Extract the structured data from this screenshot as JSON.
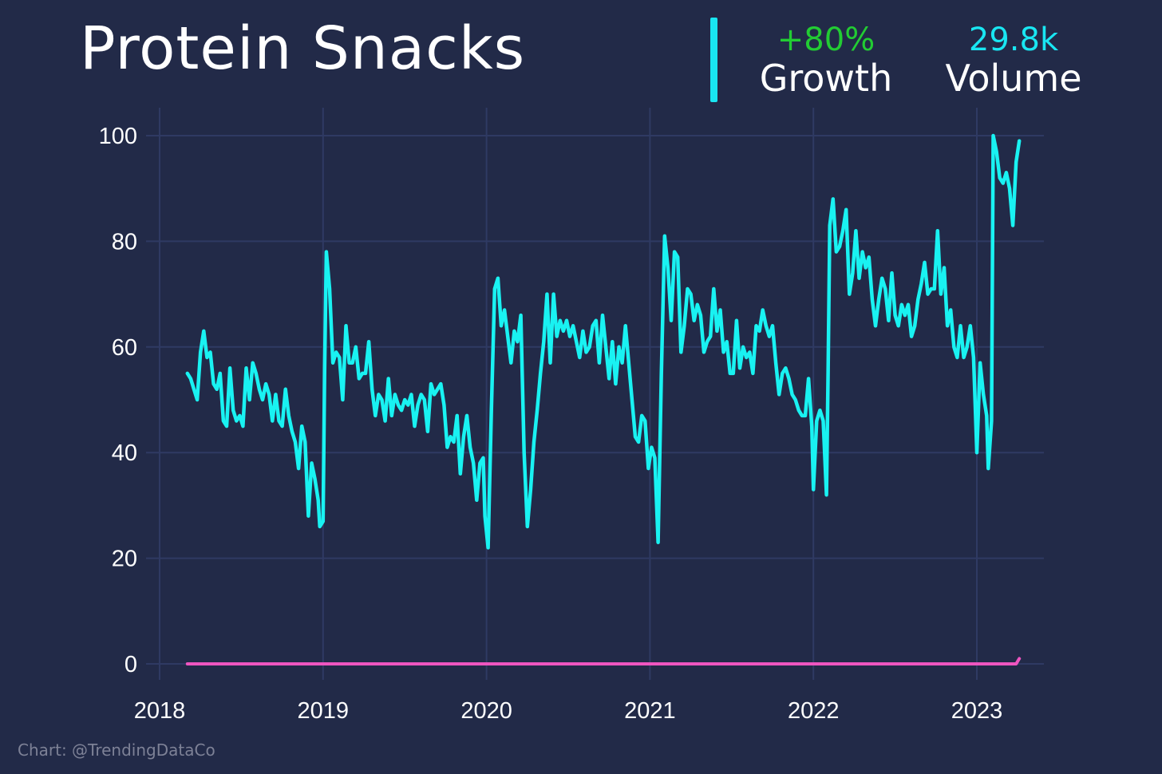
{
  "header": {
    "title": "Protein Snacks",
    "growth_value": "+80%",
    "growth_label": "Growth",
    "volume_value": "29.8k",
    "volume_label": "Volume"
  },
  "footer": {
    "credit": "Chart: @TrendingDataCo"
  },
  "colors": {
    "background": "#222a48",
    "grid": "#2f3a63",
    "series_main": "#19f2f2",
    "series_baseline": "#ee55c0",
    "growth": "#22cc33",
    "volume": "#19e6f2",
    "accent_bar": "#19e6f2"
  },
  "chart_data": {
    "type": "line",
    "title": "Protein Snacks",
    "xlabel": "",
    "ylabel": "",
    "xlim": [
      2018,
      2023.4
    ],
    "ylim": [
      -3,
      105
    ],
    "x_ticks": [
      2018,
      2019,
      2020,
      2021,
      2022,
      2023
    ],
    "y_ticks": [
      0,
      20,
      40,
      60,
      80,
      100
    ],
    "grid": true,
    "legend": "none",
    "series": [
      {
        "color": "#19f2f2",
        "points": [
          [
            2018.17,
            55
          ],
          [
            2018.19,
            54
          ],
          [
            2018.21,
            52
          ],
          [
            2018.23,
            50
          ],
          [
            2018.25,
            59
          ],
          [
            2018.27,
            63
          ],
          [
            2018.29,
            58
          ],
          [
            2018.31,
            59
          ],
          [
            2018.33,
            53
          ],
          [
            2018.35,
            52
          ],
          [
            2018.37,
            55
          ],
          [
            2018.39,
            46
          ],
          [
            2018.41,
            45
          ],
          [
            2018.43,
            56
          ],
          [
            2018.45,
            48
          ],
          [
            2018.47,
            46
          ],
          [
            2018.49,
            47
          ],
          [
            2018.51,
            45
          ],
          [
            2018.53,
            56
          ],
          [
            2018.55,
            50
          ],
          [
            2018.57,
            57
          ],
          [
            2018.59,
            55
          ],
          [
            2018.61,
            52
          ],
          [
            2018.63,
            50
          ],
          [
            2018.65,
            53
          ],
          [
            2018.67,
            51
          ],
          [
            2018.69,
            46
          ],
          [
            2018.71,
            51
          ],
          [
            2018.73,
            46
          ],
          [
            2018.75,
            45
          ],
          [
            2018.77,
            52
          ],
          [
            2018.79,
            47
          ],
          [
            2018.81,
            44
          ],
          [
            2018.83,
            42
          ],
          [
            2018.85,
            37
          ],
          [
            2018.87,
            45
          ],
          [
            2018.89,
            42
          ],
          [
            2018.91,
            28
          ],
          [
            2018.93,
            38
          ],
          [
            2018.95,
            35
          ],
          [
            2018.97,
            31
          ],
          [
            2018.98,
            26
          ],
          [
            2019.0,
            27
          ],
          [
            2019.01,
            56
          ],
          [
            2019.02,
            78
          ],
          [
            2019.04,
            71
          ],
          [
            2019.06,
            57
          ],
          [
            2019.08,
            59
          ],
          [
            2019.1,
            58
          ],
          [
            2019.12,
            50
          ],
          [
            2019.14,
            64
          ],
          [
            2019.16,
            57
          ],
          [
            2019.18,
            57
          ],
          [
            2019.2,
            60
          ],
          [
            2019.22,
            54
          ],
          [
            2019.24,
            55
          ],
          [
            2019.26,
            55
          ],
          [
            2019.28,
            61
          ],
          [
            2019.3,
            52
          ],
          [
            2019.32,
            47
          ],
          [
            2019.34,
            51
          ],
          [
            2019.36,
            50
          ],
          [
            2019.38,
            46
          ],
          [
            2019.4,
            54
          ],
          [
            2019.42,
            47
          ],
          [
            2019.44,
            51
          ],
          [
            2019.46,
            49
          ],
          [
            2019.48,
            48
          ],
          [
            2019.5,
            50
          ],
          [
            2019.52,
            49
          ],
          [
            2019.54,
            51
          ],
          [
            2019.56,
            45
          ],
          [
            2019.58,
            49
          ],
          [
            2019.6,
            51
          ],
          [
            2019.62,
            50
          ],
          [
            2019.64,
            44
          ],
          [
            2019.66,
            53
          ],
          [
            2019.68,
            51
          ],
          [
            2019.7,
            52
          ],
          [
            2019.72,
            53
          ],
          [
            2019.74,
            49
          ],
          [
            2019.76,
            41
          ],
          [
            2019.78,
            43
          ],
          [
            2019.8,
            42
          ],
          [
            2019.82,
            47
          ],
          [
            2019.84,
            36
          ],
          [
            2019.86,
            43
          ],
          [
            2019.88,
            47
          ],
          [
            2019.9,
            41
          ],
          [
            2019.92,
            38
          ],
          [
            2019.94,
            31
          ],
          [
            2019.96,
            38
          ],
          [
            2019.98,
            39
          ],
          [
            2019.99,
            28
          ],
          [
            2020.01,
            22
          ],
          [
            2020.03,
            48
          ],
          [
            2020.05,
            71
          ],
          [
            2020.07,
            73
          ],
          [
            2020.09,
            64
          ],
          [
            2020.11,
            67
          ],
          [
            2020.13,
            62
          ],
          [
            2020.15,
            57
          ],
          [
            2020.17,
            63
          ],
          [
            2020.19,
            61
          ],
          [
            2020.21,
            66
          ],
          [
            2020.23,
            40
          ],
          [
            2020.25,
            26
          ],
          [
            2020.27,
            33
          ],
          [
            2020.29,
            42
          ],
          [
            2020.31,
            48
          ],
          [
            2020.33,
            55
          ],
          [
            2020.35,
            61
          ],
          [
            2020.37,
            70
          ],
          [
            2020.39,
            57
          ],
          [
            2020.41,
            70
          ],
          [
            2020.43,
            62
          ],
          [
            2020.45,
            65
          ],
          [
            2020.47,
            63
          ],
          [
            2020.49,
            65
          ],
          [
            2020.51,
            62
          ],
          [
            2020.53,
            64
          ],
          [
            2020.55,
            61
          ],
          [
            2020.57,
            58
          ],
          [
            2020.59,
            63
          ],
          [
            2020.61,
            59
          ],
          [
            2020.63,
            60
          ],
          [
            2020.65,
            64
          ],
          [
            2020.67,
            65
          ],
          [
            2020.69,
            57
          ],
          [
            2020.71,
            66
          ],
          [
            2020.73,
            60
          ],
          [
            2020.75,
            54
          ],
          [
            2020.77,
            61
          ],
          [
            2020.79,
            53
          ],
          [
            2020.81,
            60
          ],
          [
            2020.83,
            57
          ],
          [
            2020.85,
            64
          ],
          [
            2020.87,
            57
          ],
          [
            2020.89,
            50
          ],
          [
            2020.91,
            43
          ],
          [
            2020.93,
            42
          ],
          [
            2020.95,
            47
          ],
          [
            2020.97,
            46
          ],
          [
            2020.99,
            37
          ],
          [
            2021.01,
            41
          ],
          [
            2021.03,
            39
          ],
          [
            2021.05,
            23
          ],
          [
            2021.07,
            55
          ],
          [
            2021.09,
            81
          ],
          [
            2021.11,
            75
          ],
          [
            2021.13,
            65
          ],
          [
            2021.15,
            78
          ],
          [
            2021.17,
            77
          ],
          [
            2021.19,
            59
          ],
          [
            2021.21,
            64
          ],
          [
            2021.23,
            71
          ],
          [
            2021.25,
            70
          ],
          [
            2021.27,
            65
          ],
          [
            2021.29,
            68
          ],
          [
            2021.31,
            66
          ],
          [
            2021.33,
            59
          ],
          [
            2021.35,
            61
          ],
          [
            2021.37,
            62
          ],
          [
            2021.39,
            71
          ],
          [
            2021.41,
            63
          ],
          [
            2021.43,
            67
          ],
          [
            2021.45,
            59
          ],
          [
            2021.47,
            61
          ],
          [
            2021.49,
            55
          ],
          [
            2021.51,
            55
          ],
          [
            2021.53,
            65
          ],
          [
            2021.55,
            56
          ],
          [
            2021.57,
            60
          ],
          [
            2021.59,
            58
          ],
          [
            2021.61,
            59
          ],
          [
            2021.63,
            55
          ],
          [
            2021.65,
            64
          ],
          [
            2021.67,
            63
          ],
          [
            2021.69,
            67
          ],
          [
            2021.71,
            64
          ],
          [
            2021.73,
            62
          ],
          [
            2021.75,
            64
          ],
          [
            2021.77,
            57
          ],
          [
            2021.79,
            51
          ],
          [
            2021.81,
            55
          ],
          [
            2021.83,
            56
          ],
          [
            2021.85,
            54
          ],
          [
            2021.87,
            51
          ],
          [
            2021.89,
            50
          ],
          [
            2021.91,
            48
          ],
          [
            2021.93,
            47
          ],
          [
            2021.95,
            47
          ],
          [
            2021.97,
            54
          ],
          [
            2021.99,
            45
          ],
          [
            2022.0,
            33
          ],
          [
            2022.02,
            46
          ],
          [
            2022.04,
            48
          ],
          [
            2022.06,
            46
          ],
          [
            2022.08,
            32
          ],
          [
            2022.09,
            55
          ],
          [
            2022.1,
            83
          ],
          [
            2022.12,
            88
          ],
          [
            2022.14,
            78
          ],
          [
            2022.16,
            79
          ],
          [
            2022.18,
            82
          ],
          [
            2022.2,
            86
          ],
          [
            2022.22,
            70
          ],
          [
            2022.24,
            74
          ],
          [
            2022.26,
            82
          ],
          [
            2022.28,
            73
          ],
          [
            2022.3,
            78
          ],
          [
            2022.32,
            75
          ],
          [
            2022.34,
            77
          ],
          [
            2022.36,
            69
          ],
          [
            2022.38,
            64
          ],
          [
            2022.4,
            69
          ],
          [
            2022.42,
            73
          ],
          [
            2022.44,
            71
          ],
          [
            2022.46,
            65
          ],
          [
            2022.48,
            74
          ],
          [
            2022.5,
            66
          ],
          [
            2022.52,
            64
          ],
          [
            2022.54,
            68
          ],
          [
            2022.56,
            66
          ],
          [
            2022.58,
            68
          ],
          [
            2022.6,
            62
          ],
          [
            2022.62,
            64
          ],
          [
            2022.64,
            69
          ],
          [
            2022.66,
            72
          ],
          [
            2022.68,
            76
          ],
          [
            2022.7,
            70
          ],
          [
            2022.72,
            71
          ],
          [
            2022.74,
            71
          ],
          [
            2022.76,
            82
          ],
          [
            2022.78,
            70
          ],
          [
            2022.8,
            75
          ],
          [
            2022.82,
            64
          ],
          [
            2022.84,
            67
          ],
          [
            2022.86,
            60
          ],
          [
            2022.88,
            58
          ],
          [
            2022.9,
            64
          ],
          [
            2022.92,
            58
          ],
          [
            2022.94,
            60
          ],
          [
            2022.96,
            64
          ],
          [
            2022.98,
            58
          ],
          [
            2023.0,
            40
          ],
          [
            2023.02,
            57
          ],
          [
            2023.04,
            51
          ],
          [
            2023.06,
            47
          ],
          [
            2023.07,
            37
          ],
          [
            2023.09,
            46
          ],
          [
            2023.1,
            100
          ],
          [
            2023.12,
            97
          ],
          [
            2023.14,
            92
          ],
          [
            2023.16,
            91
          ],
          [
            2023.18,
            93
          ],
          [
            2023.2,
            90
          ],
          [
            2023.22,
            83
          ],
          [
            2023.24,
            95
          ],
          [
            2023.26,
            99
          ]
        ]
      },
      {
        "color": "#ee55c0",
        "points": [
          [
            2018.17,
            0
          ],
          [
            2023.24,
            0
          ],
          [
            2023.26,
            1
          ]
        ]
      }
    ]
  }
}
